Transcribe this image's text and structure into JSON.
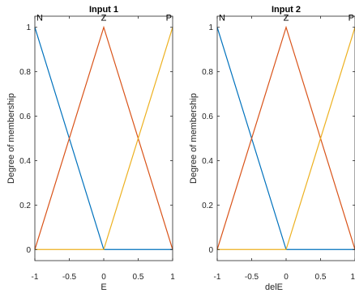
{
  "chart_data": [
    {
      "type": "line",
      "title": "Input 1",
      "xlabel": "E",
      "ylabel": "Degree of membership",
      "xlim": [
        -1,
        1
      ],
      "ylim": [
        -0.05,
        1.05
      ],
      "xticks": [
        "-1",
        "-0.5",
        "0",
        "0.5",
        "1"
      ],
      "yticks": [
        "0",
        "0.2",
        "0.4",
        "0.6",
        "0.8",
        "1"
      ],
      "grid": false,
      "series": [
        {
          "name": "N",
          "color": "#0072BD",
          "x": [
            -1,
            0,
            1
          ],
          "y": [
            1,
            0,
            0
          ]
        },
        {
          "name": "Z",
          "color": "#D95319",
          "x": [
            -1,
            0,
            1
          ],
          "y": [
            0,
            1,
            0
          ]
        },
        {
          "name": "P",
          "color": "#EDB120",
          "x": [
            -1,
            0,
            1
          ],
          "y": [
            0,
            0,
            1
          ]
        }
      ]
    },
    {
      "type": "line",
      "title": "Input 2",
      "xlabel": "delE",
      "ylabel": "Degree of membership",
      "xlim": [
        -1,
        1
      ],
      "ylim": [
        -0.05,
        1.05
      ],
      "xticks": [
        "-1",
        "-0.5",
        "0",
        "0.5",
        "1"
      ],
      "yticks": [
        "0",
        "0.2",
        "0.4",
        "0.6",
        "0.8",
        "1"
      ],
      "grid": false,
      "series": [
        {
          "name": "N",
          "color": "#0072BD",
          "x": [
            -1,
            0,
            1
          ],
          "y": [
            1,
            0,
            0
          ]
        },
        {
          "name": "Z",
          "color": "#D95319",
          "x": [
            -1,
            0,
            1
          ],
          "y": [
            0,
            1,
            0
          ]
        },
        {
          "name": "P",
          "color": "#EDB120",
          "x": [
            -1,
            0,
            1
          ],
          "y": [
            0,
            0,
            1
          ]
        }
      ]
    }
  ]
}
